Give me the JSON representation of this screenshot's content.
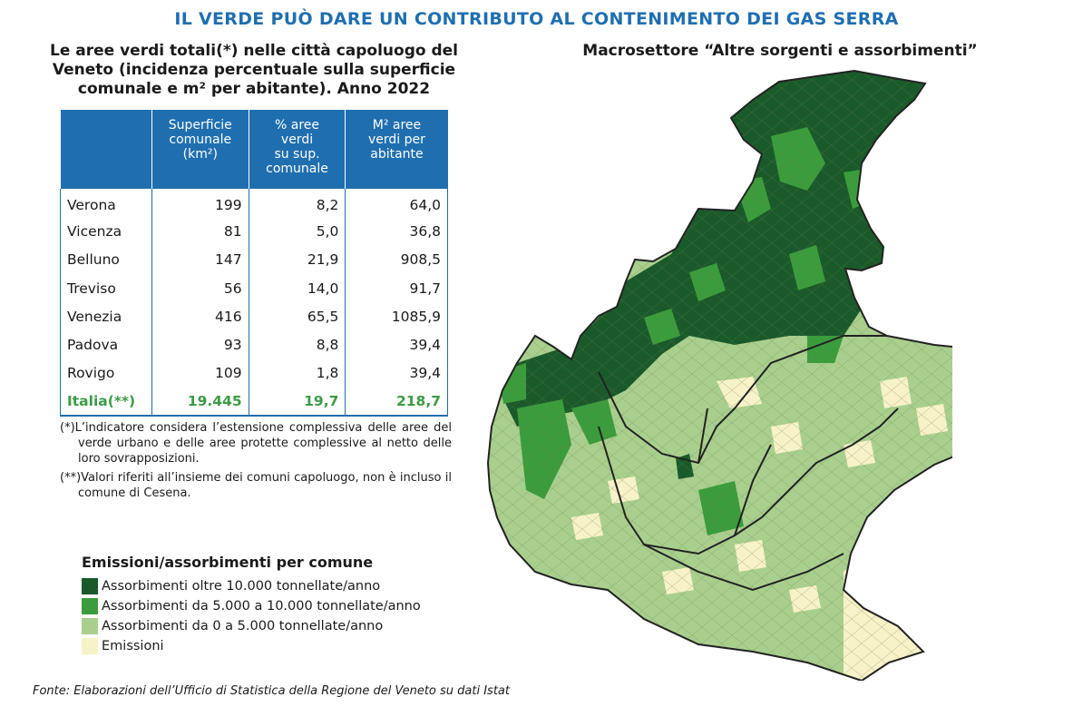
{
  "header": {
    "title": "IL VERDE PUÒ DARE UN CONTRIBUTO AL CONTENIMENTO DEI GAS SERRA"
  },
  "table_section": {
    "title": "Le aree verdi totali(*) nelle città capoluogo del Veneto (incidenza percentuale sulla superficie comunale e m² per abitante). Anno 2022",
    "columns": [
      "",
      "Superficie\ncomunale\n(km²)",
      "% aree\nverdi\nsu sup.\ncomunale",
      "M² aree\nverdi per\nabitante"
    ],
    "rows": [
      {
        "city": "Verona",
        "surface": "199",
        "green_pct": "8,2",
        "green_m2": "64,0"
      },
      {
        "city": "Vicenza",
        "surface": "81",
        "green_pct": "5,0",
        "green_m2": "36,8"
      },
      {
        "city": "Belluno",
        "surface": "147",
        "green_pct": "21,9",
        "green_m2": "908,5"
      },
      {
        "city": "Treviso",
        "surface": "56",
        "green_pct": "14,0",
        "green_m2": "91,7"
      },
      {
        "city": "Venezia",
        "surface": "416",
        "green_pct": "65,5",
        "green_m2": "1085,9"
      },
      {
        "city": "Padova",
        "surface": "93",
        "green_pct": "8,8",
        "green_m2": "39,4"
      },
      {
        "city": "Rovigo",
        "surface": "109",
        "green_pct": "1,8",
        "green_m2": "39,4"
      }
    ],
    "total_row": {
      "city": "Italia(**)",
      "surface": "19.445",
      "green_pct": "19,7",
      "green_m2": "218,7"
    },
    "note_1": "(*)L’indicatore considera l’estensione complessiva delle aree del verde urbano e delle aree protette complessive al netto delle loro sovrapposizioni.",
    "note_2": "(**)Valori riferiti all’insieme dei comuni capoluogo, non è incluso il comune di Cesena."
  },
  "map_section": {
    "title": "Macrosettore “Altre sorgenti e assorbimenti”"
  },
  "legend": {
    "title": "Emissioni/assorbimenti per comune",
    "items": [
      {
        "label": "Assorbimenti oltre 10.000 tonnellate/anno",
        "color": "#1a5a2a"
      },
      {
        "label": "Assorbimenti da 5.000 a 10.000 tonnellate/anno",
        "color": "#3b9c3c"
      },
      {
        "label": "Assorbimenti da 0 a 5.000 tonnellate/anno",
        "color": "#a9cf8e"
      },
      {
        "label": "Emissioni",
        "color": "#f7f2c8"
      }
    ]
  },
  "source": "Fonte: Elaborazioni dell’Ufficio di Statistica della Regione del Veneto su dati Istat"
}
